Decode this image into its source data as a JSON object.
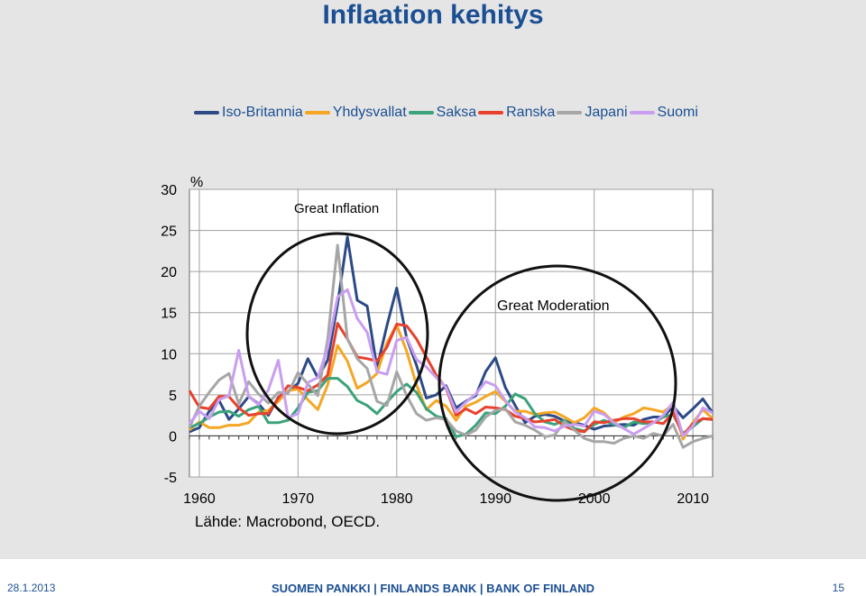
{
  "slide": {
    "title": "Inflaation kehitys",
    "source": "Lähde: Macrobond, OECD."
  },
  "footer": {
    "date": "28.1.2013",
    "org": "SUOMEN PANKKI | FINLANDS BANK | BANK OF FINLAND",
    "page": "15"
  },
  "colors": {
    "title": "#1b4f93",
    "uk": "#2b4a86",
    "us": "#f5a623",
    "de": "#3aa37a",
    "fr": "#e8412c",
    "jp": "#a6a6a6",
    "fi": "#c99ef0"
  },
  "chart_data": {
    "type": "line",
    "ylabel": "%",
    "ylim": [
      -5,
      30
    ],
    "xlim": [
      1959,
      2012
    ],
    "yticks": [
      -5,
      0,
      5,
      10,
      15,
      20,
      25,
      30
    ],
    "xticks": [
      1960,
      1970,
      1980,
      1990,
      2000,
      2010
    ],
    "ytick_labels": [
      "-5",
      "0",
      "5",
      "10",
      "15",
      "20",
      "25",
      "30"
    ],
    "xtick_labels": [
      "1960",
      "1970",
      "1980",
      "1990",
      "2000",
      "2010"
    ],
    "grid": true,
    "legend_position": "top",
    "annotations": [
      {
        "text": "Great Inflation",
        "x": 1970.5,
        "y": 27
      },
      {
        "text": "Great Moderation",
        "x": 1991,
        "y": 15.8
      }
    ],
    "x": [
      1959,
      1960,
      1961,
      1962,
      1963,
      1964,
      1965,
      1966,
      1967,
      1968,
      1969,
      1970,
      1971,
      1972,
      1973,
      1974,
      1975,
      1976,
      1977,
      1978,
      1979,
      1980,
      1981,
      1982,
      1983,
      1984,
      1985,
      1986,
      1987,
      1988,
      1989,
      1990,
      1991,
      1992,
      1993,
      1994,
      1995,
      1996,
      1997,
      1998,
      1999,
      2000,
      2001,
      2002,
      2003,
      2004,
      2005,
      2006,
      2007,
      2008,
      2009,
      2010,
      2011,
      2012
    ],
    "series": [
      {
        "name": "Iso-Britannia",
        "color": "#2b4a86",
        "values": [
          0.5,
          1.0,
          3.0,
          4.3,
          2.0,
          3.3,
          4.8,
          3.9,
          2.5,
          4.7,
          5.4,
          6.4,
          9.4,
          7.1,
          9.2,
          16.0,
          24.2,
          16.5,
          15.8,
          8.3,
          13.4,
          18.0,
          11.9,
          8.6,
          4.6,
          5.0,
          6.1,
          3.4,
          4.2,
          4.9,
          7.8,
          9.5,
          5.9,
          3.7,
          1.6,
          2.4,
          2.6,
          2.4,
          1.8,
          1.6,
          1.3,
          0.8,
          1.2,
          1.3,
          1.4,
          1.3,
          2.0,
          2.3,
          2.3,
          3.6,
          2.2,
          3.3,
          4.5,
          2.8
        ]
      },
      {
        "name": "Yhdysvallat",
        "color": "#f5a623",
        "values": [
          0.7,
          1.7,
          1.0,
          1.0,
          1.3,
          1.3,
          1.6,
          2.9,
          3.1,
          4.2,
          5.5,
          5.7,
          4.4,
          3.2,
          6.2,
          11.0,
          9.1,
          5.8,
          6.5,
          7.6,
          11.3,
          13.5,
          10.3,
          6.2,
          3.2,
          4.3,
          3.6,
          1.9,
          3.6,
          4.1,
          4.8,
          5.4,
          4.2,
          3.0,
          3.0,
          2.6,
          2.8,
          2.9,
          2.3,
          1.6,
          2.2,
          3.4,
          2.8,
          1.6,
          2.3,
          2.7,
          3.4,
          3.2,
          2.9,
          3.8,
          -0.4,
          1.6,
          3.2,
          2.1
        ]
      },
      {
        "name": "Saksa",
        "color": "#3aa37a",
        "values": [
          1.0,
          1.5,
          2.3,
          2.9,
          3.0,
          2.4,
          3.2,
          3.6,
          1.6,
          1.6,
          1.9,
          3.4,
          5.3,
          5.5,
          7.0,
          7.0,
          6.0,
          4.3,
          3.7,
          2.7,
          4.1,
          5.4,
          6.3,
          5.3,
          3.3,
          2.4,
          2.1,
          -0.1,
          0.2,
          1.3,
          2.8,
          2.7,
          3.6,
          5.1,
          4.5,
          2.7,
          1.7,
          1.4,
          1.9,
          0.9,
          0.6,
          1.4,
          1.9,
          1.4,
          1.0,
          1.7,
          1.5,
          1.6,
          2.3,
          2.6,
          0.3,
          1.1,
          2.1,
          2.0
        ]
      },
      {
        "name": "Ranska",
        "color": "#e8412c",
        "values": [
          5.5,
          3.5,
          3.3,
          4.8,
          4.8,
          3.4,
          2.5,
          2.7,
          2.7,
          4.6,
          6.1,
          5.9,
          5.5,
          6.2,
          7.4,
          13.7,
          11.8,
          9.6,
          9.4,
          9.1,
          10.8,
          13.6,
          13.4,
          11.8,
          9.6,
          7.4,
          5.8,
          2.5,
          3.3,
          2.7,
          3.5,
          3.4,
          3.2,
          2.4,
          2.1,
          1.7,
          1.8,
          2.0,
          1.2,
          0.7,
          0.5,
          1.7,
          1.6,
          1.9,
          2.1,
          2.1,
          1.7,
          1.7,
          1.5,
          2.8,
          0.1,
          1.5,
          2.1,
          2.0
        ]
      },
      {
        "name": "Japani",
        "color": "#a6a6a6",
        "values": [
          1.0,
          3.6,
          5.3,
          6.8,
          7.6,
          3.9,
          6.6,
          5.1,
          4.0,
          5.3,
          5.2,
          7.7,
          6.3,
          4.9,
          11.7,
          23.2,
          11.8,
          9.4,
          8.2,
          4.2,
          3.7,
          7.8,
          4.9,
          2.7,
          1.9,
          2.2,
          2.0,
          0.6,
          0.1,
          0.7,
          2.3,
          3.1,
          3.3,
          1.7,
          1.3,
          0.7,
          -0.1,
          0.1,
          1.7,
          0.7,
          -0.3,
          -0.7,
          -0.7,
          -0.9,
          -0.3,
          0.0,
          -0.3,
          0.3,
          0.0,
          1.4,
          -1.4,
          -0.7,
          -0.3,
          0.0
        ]
      },
      {
        "name": "Suomi",
        "color": "#c99ef0",
        "values": [
          1.5,
          3.0,
          2.1,
          4.4,
          4.9,
          10.4,
          4.8,
          3.8,
          5.6,
          9.2,
          2.2,
          2.7,
          6.5,
          7.1,
          10.7,
          16.9,
          17.8,
          14.3,
          12.6,
          7.8,
          7.5,
          11.6,
          12.0,
          9.3,
          8.4,
          7.1,
          5.9,
          2.9,
          4.1,
          5.1,
          6.6,
          6.1,
          4.3,
          2.9,
          2.2,
          1.1,
          1.0,
          0.6,
          1.2,
          1.4,
          1.2,
          3.0,
          2.6,
          1.6,
          0.9,
          0.2,
          0.9,
          1.6,
          2.5,
          4.1,
          0.0,
          1.2,
          3.4,
          2.8
        ]
      }
    ]
  }
}
